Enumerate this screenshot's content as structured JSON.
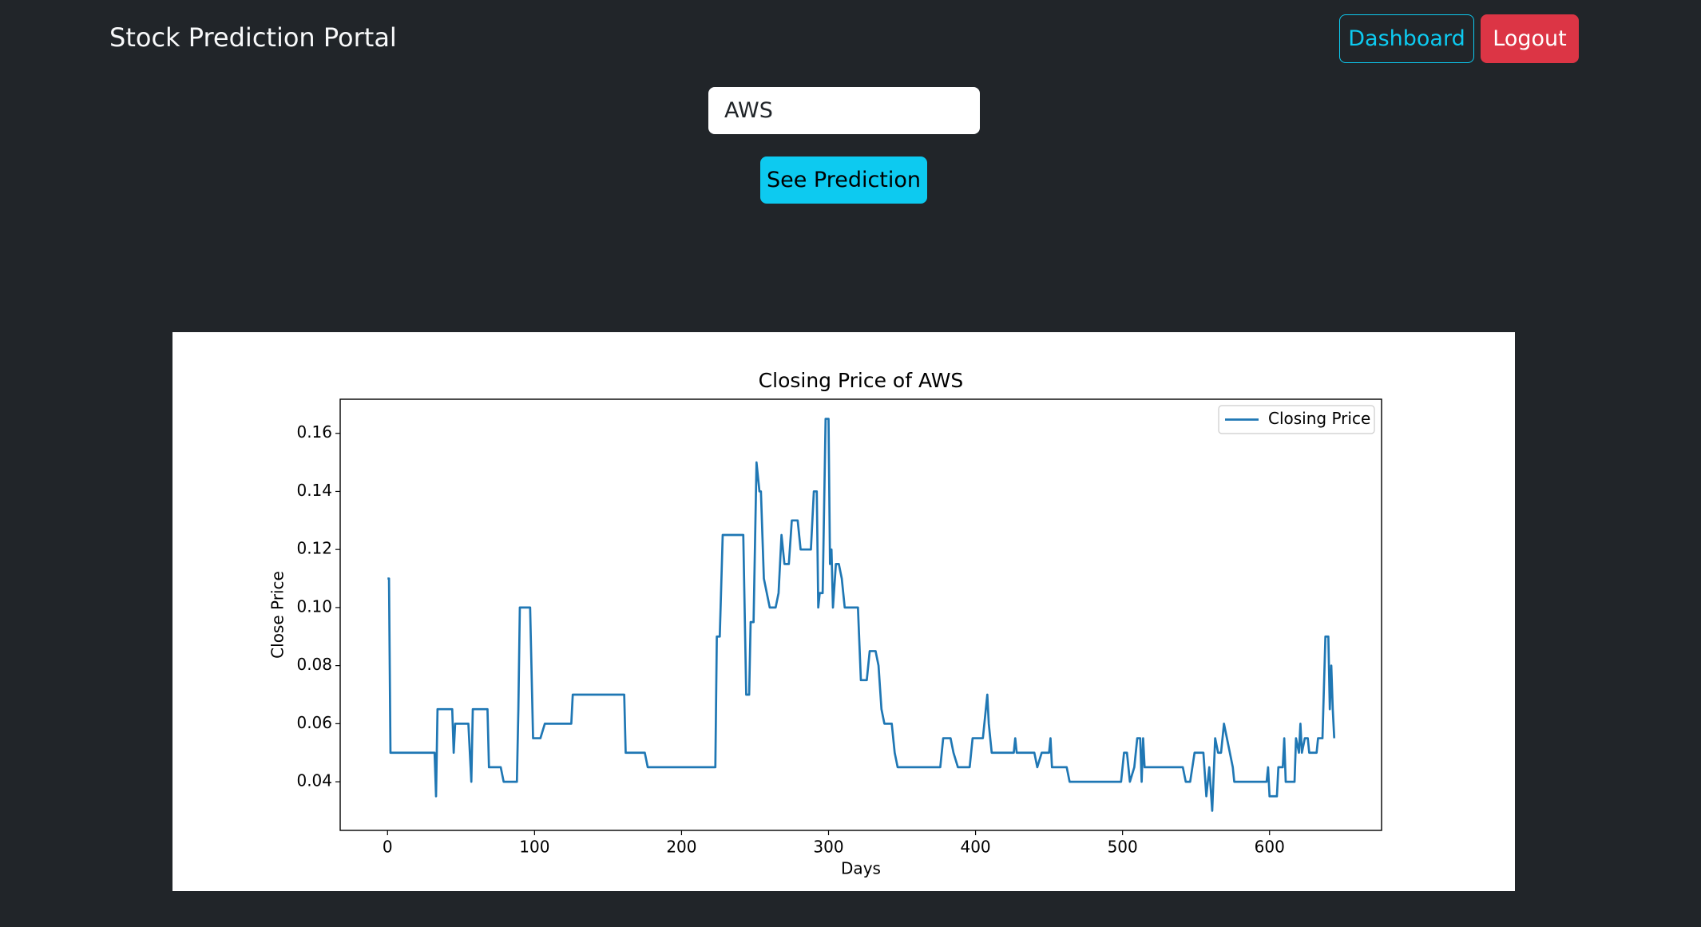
{
  "header": {
    "brand": "Stock Prediction Portal",
    "dashboard": "Dashboard",
    "logout": "Logout"
  },
  "form": {
    "ticker": "AWS",
    "button": "See Prediction"
  },
  "chart_data": {
    "type": "line",
    "title": "Closing Price of AWS",
    "x_label": "Days",
    "y_label": "Close Price",
    "x": [
      0,
      1,
      2,
      32,
      33,
      34,
      44,
      45,
      46,
      55,
      57,
      58,
      68,
      69,
      77,
      79,
      88,
      89,
      90,
      97,
      99,
      104,
      107,
      125,
      126,
      161,
      162,
      175,
      177,
      223,
      224,
      226,
      228,
      242,
      244,
      246,
      247,
      249,
      251,
      253,
      254,
      256,
      258,
      260,
      264,
      266,
      268,
      270,
      273,
      275,
      279,
      281,
      288,
      290,
      292,
      293,
      294,
      296,
      298,
      300,
      301,
      302,
      303,
      305,
      307,
      309,
      311,
      320,
      322,
      326,
      328,
      332,
      334,
      336,
      338,
      343,
      345,
      347,
      376,
      378,
      383,
      385,
      388,
      396,
      398,
      405,
      407,
      408,
      409,
      411,
      426,
      427,
      428,
      440,
      442,
      445,
      450,
      451,
      452,
      462,
      464,
      499,
      501,
      503,
      505,
      508,
      510,
      512,
      513,
      514,
      515,
      541,
      543,
      546,
      549,
      555,
      557,
      559,
      561,
      563,
      565,
      567,
      569,
      571,
      575,
      576,
      598,
      599,
      600,
      605,
      606,
      609,
      610,
      611,
      617,
      618,
      620,
      621,
      622,
      624,
      626,
      627,
      632,
      633,
      636,
      638,
      640,
      641,
      642,
      643,
      644
    ],
    "series": [
      {
        "name": "Closing Price",
        "color": "#1f77b4",
        "values": [
          0.11,
          0.11,
          0.05,
          0.05,
          0.035,
          0.065,
          0.065,
          0.05,
          0.06,
          0.06,
          0.04,
          0.065,
          0.065,
          0.045,
          0.045,
          0.04,
          0.04,
          0.065,
          0.1,
          0.1,
          0.055,
          0.055,
          0.06,
          0.06,
          0.07,
          0.07,
          0.05,
          0.05,
          0.045,
          0.045,
          0.09,
          0.09,
          0.125,
          0.125,
          0.07,
          0.07,
          0.095,
          0.095,
          0.15,
          0.14,
          0.14,
          0.11,
          0.105,
          0.1,
          0.1,
          0.105,
          0.125,
          0.115,
          0.115,
          0.13,
          0.13,
          0.12,
          0.12,
          0.14,
          0.14,
          0.1,
          0.105,
          0.105,
          0.165,
          0.165,
          0.115,
          0.12,
          0.1,
          0.115,
          0.115,
          0.11,
          0.1,
          0.1,
          0.075,
          0.075,
          0.085,
          0.085,
          0.08,
          0.065,
          0.06,
          0.06,
          0.05,
          0.045,
          0.045,
          0.055,
          0.055,
          0.05,
          0.045,
          0.045,
          0.055,
          0.055,
          0.065,
          0.07,
          0.06,
          0.05,
          0.05,
          0.055,
          0.05,
          0.05,
          0.045,
          0.05,
          0.05,
          0.055,
          0.045,
          0.045,
          0.04,
          0.04,
          0.05,
          0.05,
          0.04,
          0.045,
          0.055,
          0.055,
          0.04,
          0.055,
          0.045,
          0.045,
          0.04,
          0.04,
          0.05,
          0.05,
          0.035,
          0.045,
          0.03,
          0.055,
          0.05,
          0.05,
          0.06,
          0.055,
          0.045,
          0.04,
          0.04,
          0.045,
          0.035,
          0.035,
          0.045,
          0.045,
          0.055,
          0.04,
          0.04,
          0.055,
          0.05,
          0.06,
          0.05,
          0.055,
          0.055,
          0.05,
          0.05,
          0.055,
          0.055,
          0.09,
          0.09,
          0.065,
          0.08,
          0.065,
          0.055
        ]
      }
    ],
    "xlim": [
      -32.2,
      676.2
    ],
    "ylim": [
      0.02325,
      0.17175
    ],
    "xticks": [
      0,
      100,
      200,
      300,
      400,
      500,
      600
    ],
    "yticks": [
      0.04,
      0.06,
      0.08,
      {
        "value": 0.1,
        "label": "0.10"
      },
      0.12,
      0.14,
      0.16
    ],
    "legend": "upper right"
  }
}
